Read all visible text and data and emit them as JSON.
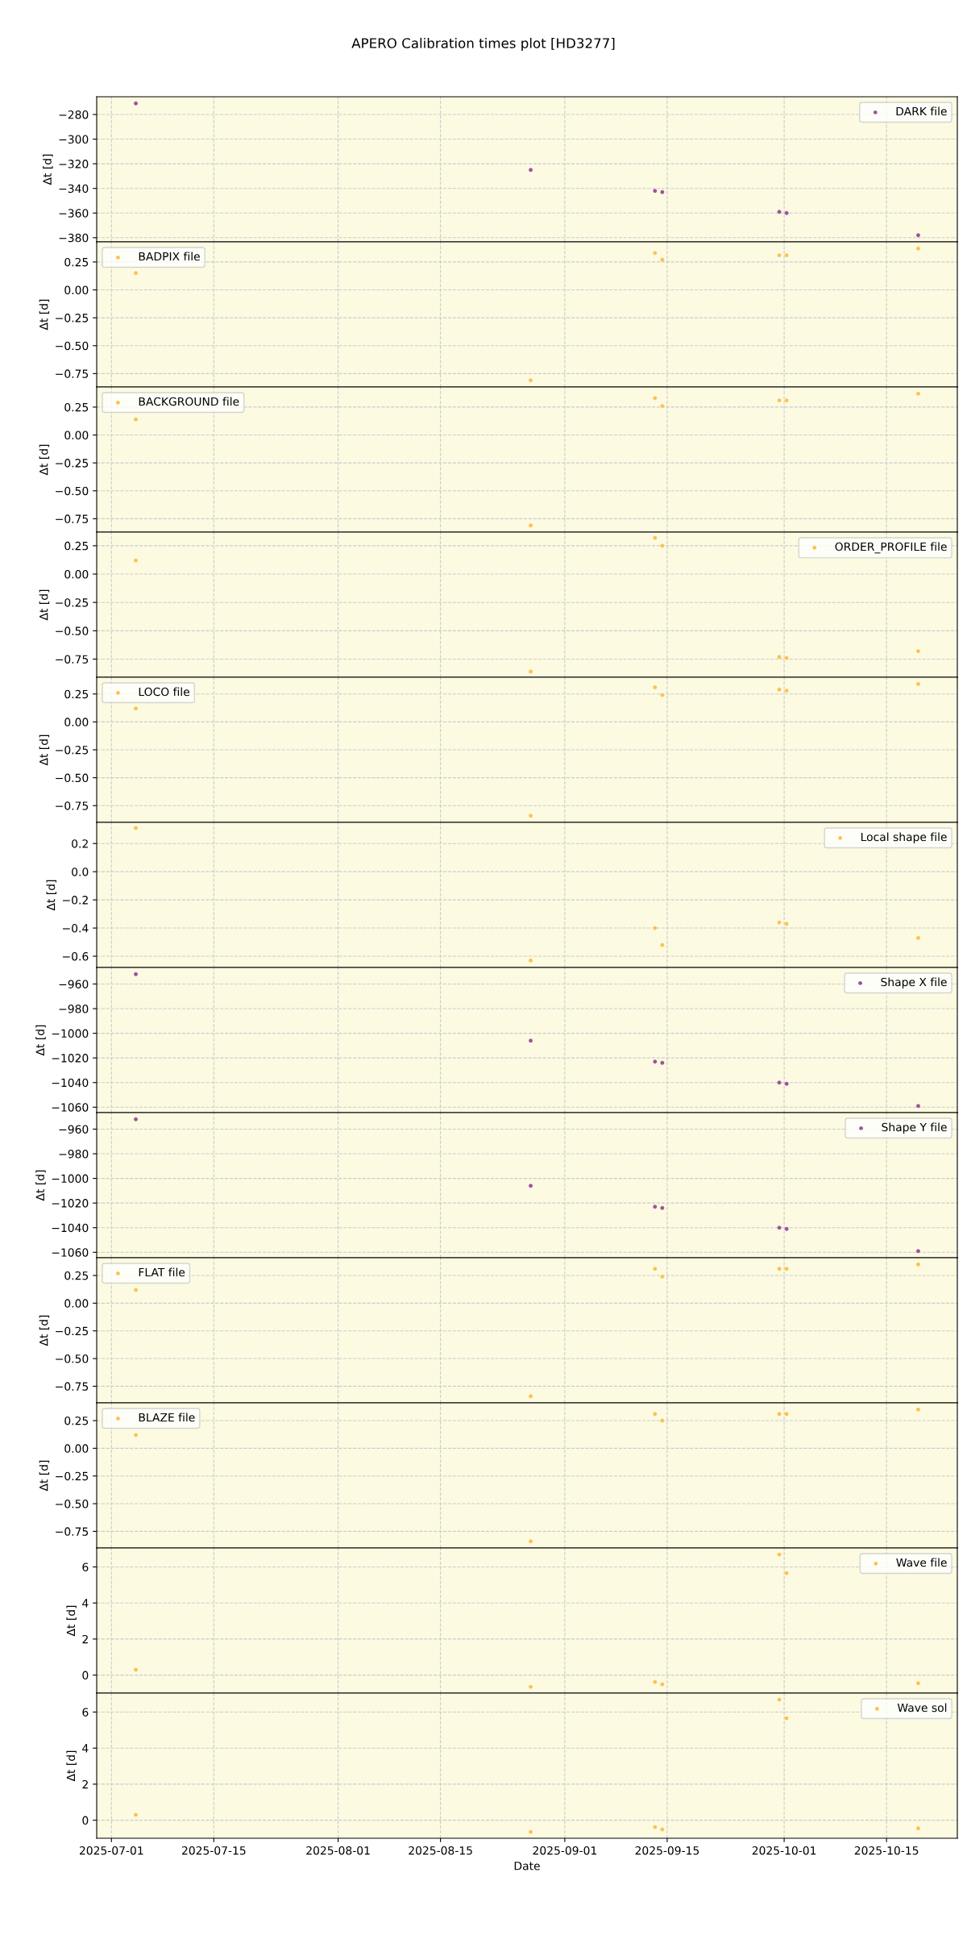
{
  "chart_data": [
    {
      "type": "scatter",
      "title": "APERO Calibration times plot [HD3277]",
      "ylabel": "Δt [d]",
      "x": [
        "2025-07-04T08:00",
        "2025-08-27T08:00",
        "2025-09-13T08:00",
        "2025-09-14T08:00",
        "2025-09-30T08:00",
        "2025-10-01T08:00",
        "2025-10-19T08:00"
      ],
      "series": [
        {
          "name": "DARK file",
          "color": "#a0529d",
          "values": [
            -271,
            -325,
            -342,
            -343,
            -359,
            -360,
            -378
          ]
        }
      ],
      "xlim": [
        "2025-06-28T23:36",
        "2025-10-24T16:24"
      ],
      "xticks": [
        "2025-07-01",
        "2025-07-15",
        "2025-08-01",
        "2025-08-15",
        "2025-09-01",
        "2025-09-15",
        "2025-10-01",
        "2025-10-15"
      ],
      "ylim": [
        -383.4,
        -265.6
      ],
      "yticks": [
        {
          "value": -380,
          "label": "−380"
        },
        {
          "value": -360,
          "label": "−360"
        },
        {
          "value": -340,
          "label": "−340"
        },
        {
          "value": -320,
          "label": "−320"
        },
        {
          "value": -300,
          "label": "−300"
        },
        {
          "value": -280,
          "label": "−280"
        }
      ],
      "grid": true,
      "legend": "top right",
      "marker": "circle",
      "tick_labels": "y"
    },
    {
      "type": "scatter",
      "ylabel": "Δt [d]",
      "x": [
        "2025-07-04T08:00",
        "2025-08-27T08:00",
        "2025-09-13T08:00",
        "2025-09-14T08:00",
        "2025-09-30T08:00",
        "2025-10-01T08:00",
        "2025-10-19T08:00"
      ],
      "series": [
        {
          "name": "BADPIX file",
          "color": "#fcc24e",
          "values": [
            0.15,
            -0.81,
            0.33,
            0.27,
            0.31,
            0.31,
            0.37
          ]
        }
      ],
      "xlim": [
        "2025-06-28T23:36",
        "2025-10-24T16:24"
      ],
      "xticks": [
        "2025-07-01",
        "2025-07-15",
        "2025-08-01",
        "2025-08-15",
        "2025-09-01",
        "2025-09-15",
        "2025-10-01",
        "2025-10-15"
      ],
      "ylim": [
        -0.87,
        0.43
      ],
      "yticks": [
        {
          "value": -0.75,
          "label": "−0.75"
        },
        {
          "value": -0.5,
          "label": "−0.50"
        },
        {
          "value": -0.25,
          "label": "−0.25"
        },
        {
          "value": 0,
          "label": "0.00"
        },
        {
          "value": 0.25,
          "label": "0.25"
        }
      ],
      "grid": true,
      "legend": "top left",
      "marker": "circle",
      "tick_labels": "y"
    },
    {
      "type": "scatter",
      "ylabel": "Δt [d]",
      "x": [
        "2025-07-04T08:00",
        "2025-08-27T08:00",
        "2025-09-13T08:00",
        "2025-09-14T08:00",
        "2025-09-30T08:00",
        "2025-10-01T08:00",
        "2025-10-19T08:00"
      ],
      "series": [
        {
          "name": "BACKGROUND file",
          "color": "#fcc24e",
          "values": [
            0.14,
            -0.81,
            0.33,
            0.26,
            0.31,
            0.31,
            0.37
          ]
        }
      ],
      "xlim": [
        "2025-06-28T23:36",
        "2025-10-24T16:24"
      ],
      "xticks": [
        "2025-07-01",
        "2025-07-15",
        "2025-08-01",
        "2025-08-15",
        "2025-09-01",
        "2025-09-15",
        "2025-10-01",
        "2025-10-15"
      ],
      "ylim": [
        -0.87,
        0.43
      ],
      "yticks": [
        {
          "value": -0.75,
          "label": "−0.75"
        },
        {
          "value": -0.5,
          "label": "−0.50"
        },
        {
          "value": -0.25,
          "label": "−0.25"
        },
        {
          "value": 0,
          "label": "0.00"
        },
        {
          "value": 0.25,
          "label": "0.25"
        }
      ],
      "grid": true,
      "legend": "top left",
      "marker": "circle",
      "tick_labels": "y"
    },
    {
      "type": "scatter",
      "ylabel": "Δt [d]",
      "x": [
        "2025-07-04T08:00",
        "2025-08-27T08:00",
        "2025-09-13T08:00",
        "2025-09-14T08:00",
        "2025-09-30T08:00",
        "2025-10-01T08:00",
        "2025-10-19T08:00"
      ],
      "series": [
        {
          "name": "ORDER_PROFILE file",
          "color": "#fcc24e",
          "values": [
            0.12,
            -0.86,
            0.32,
            0.25,
            -0.73,
            -0.74,
            -0.68
          ]
        }
      ],
      "xlim": [
        "2025-06-28T23:36",
        "2025-10-24T16:24"
      ],
      "xticks": [
        "2025-07-01",
        "2025-07-15",
        "2025-08-01",
        "2025-08-15",
        "2025-09-01",
        "2025-09-15",
        "2025-10-01",
        "2025-10-15"
      ],
      "ylim": [
        -0.91,
        0.37
      ],
      "yticks": [
        {
          "value": -0.75,
          "label": "−0.75"
        },
        {
          "value": -0.5,
          "label": "−0.50"
        },
        {
          "value": -0.25,
          "label": "−0.25"
        },
        {
          "value": 0,
          "label": "0.00"
        },
        {
          "value": 0.25,
          "label": "0.25"
        }
      ],
      "grid": true,
      "legend": "top right",
      "marker": "circle",
      "tick_labels": "y"
    },
    {
      "type": "scatter",
      "ylabel": "Δt [d]",
      "x": [
        "2025-07-04T08:00",
        "2025-08-27T08:00",
        "2025-09-13T08:00",
        "2025-09-14T08:00",
        "2025-09-30T08:00",
        "2025-10-01T08:00",
        "2025-10-19T08:00"
      ],
      "series": [
        {
          "name": "LOCO file",
          "color": "#fcc24e",
          "values": [
            0.12,
            -0.84,
            0.31,
            0.24,
            0.29,
            0.28,
            0.34
          ]
        }
      ],
      "xlim": [
        "2025-06-28T23:36",
        "2025-10-24T16:24"
      ],
      "xticks": [
        "2025-07-01",
        "2025-07-15",
        "2025-08-01",
        "2025-08-15",
        "2025-09-01",
        "2025-09-15",
        "2025-10-01",
        "2025-10-15"
      ],
      "ylim": [
        -0.9,
        0.4
      ],
      "yticks": [
        {
          "value": -0.75,
          "label": "−0.75"
        },
        {
          "value": -0.5,
          "label": "−0.50"
        },
        {
          "value": -0.25,
          "label": "−0.25"
        },
        {
          "value": 0,
          "label": "0.00"
        },
        {
          "value": 0.25,
          "label": "0.25"
        }
      ],
      "grid": true,
      "legend": "top left",
      "marker": "circle",
      "tick_labels": "y"
    },
    {
      "type": "scatter",
      "ylabel": "Δt [d]",
      "x": [
        "2025-07-04T08:00",
        "2025-08-27T08:00",
        "2025-09-13T08:00",
        "2025-09-14T08:00",
        "2025-09-30T08:00",
        "2025-10-01T08:00",
        "2025-10-19T08:00"
      ],
      "series": [
        {
          "name": "Local shape file",
          "color": "#fcc24e",
          "values": [
            0.31,
            -0.63,
            -0.4,
            -0.52,
            -0.36,
            -0.37,
            -0.47
          ]
        }
      ],
      "xlim": [
        "2025-06-28T23:36",
        "2025-10-24T16:24"
      ],
      "xticks": [
        "2025-07-01",
        "2025-07-15",
        "2025-08-01",
        "2025-08-15",
        "2025-09-01",
        "2025-09-15",
        "2025-10-01",
        "2025-10-15"
      ],
      "ylim": [
        -0.68,
        0.35
      ],
      "yticks": [
        {
          "value": -0.6,
          "label": "−0.6"
        },
        {
          "value": -0.4,
          "label": "−0.4"
        },
        {
          "value": -0.2,
          "label": "−0.2"
        },
        {
          "value": 0,
          "label": "0.0"
        },
        {
          "value": 0.2,
          "label": "0.2"
        }
      ],
      "grid": true,
      "legend": "top right",
      "marker": "circle",
      "tick_labels": "y"
    },
    {
      "type": "scatter",
      "ylabel": "Δt [d]",
      "x": [
        "2025-07-04T08:00",
        "2025-08-27T08:00",
        "2025-09-13T08:00",
        "2025-09-14T08:00",
        "2025-09-30T08:00",
        "2025-10-01T08:00",
        "2025-10-19T08:00"
      ],
      "series": [
        {
          "name": "Shape X file",
          "color": "#a0529d",
          "values": [
            -952,
            -1006,
            -1023,
            -1024,
            -1040,
            -1041,
            -1059
          ]
        }
      ],
      "xlim": [
        "2025-06-28T23:36",
        "2025-10-24T16:24"
      ],
      "xticks": [
        "2025-07-01",
        "2025-07-15",
        "2025-08-01",
        "2025-08-15",
        "2025-09-01",
        "2025-09-15",
        "2025-10-01",
        "2025-10-15"
      ],
      "ylim": [
        -1064.4,
        -946.6
      ],
      "yticks": [
        {
          "value": -1060,
          "label": "−1060"
        },
        {
          "value": -1040,
          "label": "−1040"
        },
        {
          "value": -1020,
          "label": "−1020"
        },
        {
          "value": -1000,
          "label": "−1000"
        },
        {
          "value": -980,
          "label": "−980"
        },
        {
          "value": -960,
          "label": "−960"
        }
      ],
      "grid": true,
      "legend": "top right",
      "marker": "circle",
      "tick_labels": "y"
    },
    {
      "type": "scatter",
      "ylabel": "Δt [d]",
      "x": [
        "2025-07-04T08:00",
        "2025-08-27T08:00",
        "2025-09-13T08:00",
        "2025-09-14T08:00",
        "2025-09-30T08:00",
        "2025-10-01T08:00",
        "2025-10-19T08:00"
      ],
      "series": [
        {
          "name": "Shape Y file",
          "color": "#a0529d",
          "values": [
            -952,
            -1006,
            -1023,
            -1024,
            -1040,
            -1041,
            -1059
          ]
        }
      ],
      "xlim": [
        "2025-06-28T23:36",
        "2025-10-24T16:24"
      ],
      "xticks": [
        "2025-07-01",
        "2025-07-15",
        "2025-08-01",
        "2025-08-15",
        "2025-09-01",
        "2025-09-15",
        "2025-10-01",
        "2025-10-15"
      ],
      "ylim": [
        -1064.4,
        -946.6
      ],
      "yticks": [
        {
          "value": -1060,
          "label": "−1060"
        },
        {
          "value": -1040,
          "label": "−1040"
        },
        {
          "value": -1020,
          "label": "−1020"
        },
        {
          "value": -1000,
          "label": "−1000"
        },
        {
          "value": -980,
          "label": "−980"
        },
        {
          "value": -960,
          "label": "−960"
        }
      ],
      "grid": true,
      "legend": "top right",
      "marker": "circle",
      "tick_labels": "y"
    },
    {
      "type": "scatter",
      "ylabel": "Δt [d]",
      "x": [
        "2025-07-04T08:00",
        "2025-08-27T08:00",
        "2025-09-13T08:00",
        "2025-09-14T08:00",
        "2025-09-30T08:00",
        "2025-10-01T08:00",
        "2025-10-19T08:00"
      ],
      "series": [
        {
          "name": "FLAT file",
          "color": "#fcc24e",
          "values": [
            0.12,
            -0.84,
            0.31,
            0.24,
            0.31,
            0.31,
            0.35
          ]
        }
      ],
      "xlim": [
        "2025-06-28T23:36",
        "2025-10-24T16:24"
      ],
      "xticks": [
        "2025-07-01",
        "2025-07-15",
        "2025-08-01",
        "2025-08-15",
        "2025-09-01",
        "2025-09-15",
        "2025-10-01",
        "2025-10-15"
      ],
      "ylim": [
        -0.9,
        0.41
      ],
      "yticks": [
        {
          "value": -0.75,
          "label": "−0.75"
        },
        {
          "value": -0.5,
          "label": "−0.50"
        },
        {
          "value": -0.25,
          "label": "−0.25"
        },
        {
          "value": 0,
          "label": "0.00"
        },
        {
          "value": 0.25,
          "label": "0.25"
        }
      ],
      "grid": true,
      "legend": "top left",
      "marker": "circle",
      "tick_labels": "y"
    },
    {
      "type": "scatter",
      "ylabel": "Δt [d]",
      "x": [
        "2025-07-04T08:00",
        "2025-08-27T08:00",
        "2025-09-13T08:00",
        "2025-09-14T08:00",
        "2025-09-30T08:00",
        "2025-10-01T08:00",
        "2025-10-19T08:00"
      ],
      "series": [
        {
          "name": "BLAZE file",
          "color": "#fcc24e",
          "values": [
            0.12,
            -0.84,
            0.31,
            0.25,
            0.31,
            0.31,
            0.35
          ]
        }
      ],
      "xlim": [
        "2025-06-28T23:36",
        "2025-10-24T16:24"
      ],
      "xticks": [
        "2025-07-01",
        "2025-07-15",
        "2025-08-01",
        "2025-08-15",
        "2025-09-01",
        "2025-09-15",
        "2025-10-01",
        "2025-10-15"
      ],
      "ylim": [
        -0.9,
        0.41
      ],
      "yticks": [
        {
          "value": -0.75,
          "label": "−0.75"
        },
        {
          "value": -0.5,
          "label": "−0.50"
        },
        {
          "value": -0.25,
          "label": "−0.25"
        },
        {
          "value": 0,
          "label": "0.00"
        },
        {
          "value": 0.25,
          "label": "0.25"
        }
      ],
      "grid": true,
      "legend": "top left",
      "marker": "circle",
      "tick_labels": "y"
    },
    {
      "type": "scatter",
      "ylabel": "Δt [d]",
      "x": [
        "2025-07-04T08:00",
        "2025-08-27T08:00",
        "2025-09-13T08:00",
        "2025-09-14T08:00",
        "2025-09-30T08:00",
        "2025-10-01T08:00",
        "2025-10-19T08:00"
      ],
      "series": [
        {
          "name": "Wave file",
          "color": "#fcc24e",
          "values": [
            0.3,
            -0.65,
            -0.38,
            -0.51,
            6.69,
            5.66,
            -0.45
          ]
        }
      ],
      "xlim": [
        "2025-06-28T23:36",
        "2025-10-24T16:24"
      ],
      "xticks": [
        "2025-07-01",
        "2025-07-15",
        "2025-08-01",
        "2025-08-15",
        "2025-09-01",
        "2025-09-15",
        "2025-10-01",
        "2025-10-15"
      ],
      "ylim": [
        -1.0,
        7.05
      ],
      "yticks": [
        0,
        2,
        4,
        6
      ],
      "grid": true,
      "legend": "top right",
      "marker": "circle",
      "tick_labels": "y"
    },
    {
      "type": "scatter",
      "ylabel": "Δt [d]",
      "xlabel": "Date",
      "x": [
        "2025-07-04T08:00",
        "2025-08-27T08:00",
        "2025-09-13T08:00",
        "2025-09-14T08:00",
        "2025-09-30T08:00",
        "2025-10-01T08:00",
        "2025-10-19T08:00"
      ],
      "series": [
        {
          "name": "Wave sol",
          "color": "#fcc24e",
          "values": [
            0.3,
            -0.65,
            -0.38,
            -0.51,
            6.69,
            5.66,
            -0.45
          ]
        }
      ],
      "xlim": [
        "2025-06-28T23:36",
        "2025-10-24T16:24"
      ],
      "xticks": [
        "2025-07-01",
        "2025-07-15",
        "2025-08-01",
        "2025-08-15",
        "2025-09-01",
        "2025-09-15",
        "2025-10-01",
        "2025-10-15"
      ],
      "ylim": [
        -1.0,
        7.05
      ],
      "yticks": [
        0,
        2,
        4,
        6
      ],
      "grid": true,
      "legend": "top right",
      "marker": "circle"
    }
  ]
}
